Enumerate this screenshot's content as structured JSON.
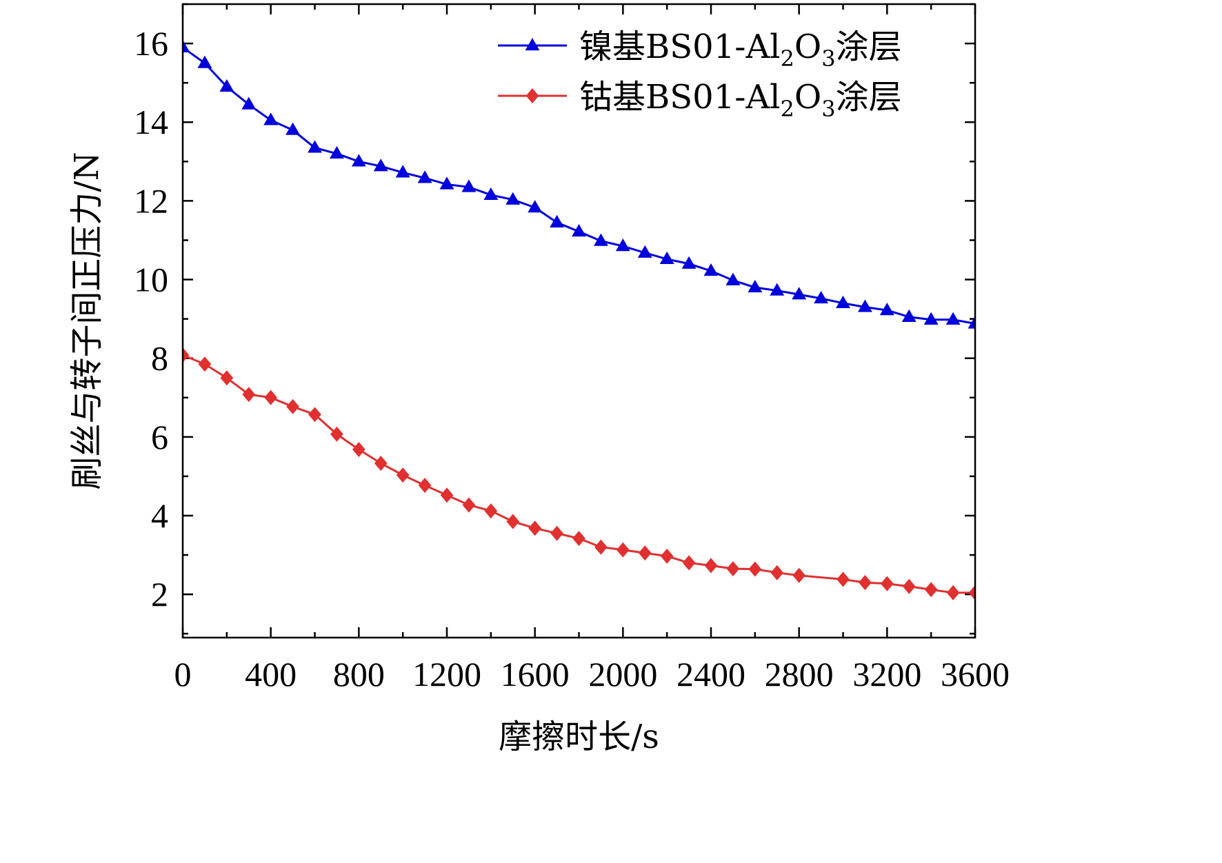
{
  "chart_data": {
    "type": "line",
    "xlabel": "摩擦时长/s",
    "ylabel": "刷丝与转子间正压力/N",
    "xlim": [
      0,
      3600
    ],
    "ylim": [
      0.9,
      17
    ],
    "xticks": [
      "0",
      "400",
      "800",
      "1200",
      "1600",
      "2000",
      "2400",
      "2800",
      "3200",
      "3600"
    ],
    "yticks": [
      "2",
      "4",
      "6",
      "8",
      "10",
      "12",
      "14",
      "16"
    ],
    "grid": false,
    "legend_position": "top-right",
    "series": [
      {
        "name": "镍基BS01-Al2O3涂层",
        "legend": {
          "prefix": "镍基BS01-Al",
          "sub1": "2",
          "mid": "O",
          "sub2": "3",
          "suffix": "涂层"
        },
        "color": "#0000dd",
        "marker": "triangle",
        "x": [
          0,
          100,
          200,
          300,
          400,
          500,
          600,
          700,
          800,
          900,
          1000,
          1100,
          1200,
          1300,
          1400,
          1500,
          1600,
          1700,
          1800,
          1900,
          2000,
          2100,
          2200,
          2300,
          2400,
          2500,
          2600,
          2700,
          2800,
          2900,
          3000,
          3100,
          3200,
          3300,
          3400,
          3500,
          3600
        ],
        "y": [
          15.9,
          15.5,
          14.9,
          14.45,
          14.05,
          13.8,
          13.35,
          13.2,
          13.0,
          12.88,
          12.72,
          12.58,
          12.42,
          12.35,
          12.15,
          12.03,
          11.83,
          11.45,
          11.22,
          10.98,
          10.85,
          10.68,
          10.52,
          10.4,
          10.22,
          9.98,
          9.8,
          9.72,
          9.62,
          9.52,
          9.4,
          9.3,
          9.22,
          9.05,
          8.98,
          8.98,
          8.88
        ]
      },
      {
        "name": "钴基BS01-Al2O3涂层",
        "legend": {
          "prefix": "钴基BS01-Al",
          "sub1": "2",
          "mid": "O",
          "sub2": "3",
          "suffix": "涂层"
        },
        "color": "#e03030",
        "marker": "diamond",
        "x": [
          0,
          100,
          200,
          300,
          400,
          500,
          600,
          700,
          800,
          900,
          1000,
          1100,
          1200,
          1300,
          1400,
          1500,
          1600,
          1700,
          1800,
          1900,
          2000,
          2100,
          2200,
          2300,
          2400,
          2500,
          2600,
          2700,
          2800,
          3000,
          3100,
          3200,
          3300,
          3400,
          3500,
          3600
        ],
        "y": [
          8.08,
          7.85,
          7.5,
          7.08,
          7.0,
          6.77,
          6.57,
          6.07,
          5.68,
          5.33,
          5.03,
          4.77,
          4.52,
          4.27,
          4.12,
          3.85,
          3.68,
          3.55,
          3.42,
          3.2,
          3.13,
          3.05,
          2.97,
          2.8,
          2.73,
          2.65,
          2.64,
          2.55,
          2.48,
          2.38,
          2.3,
          2.27,
          2.2,
          2.12,
          2.04,
          2.04
        ]
      }
    ]
  }
}
